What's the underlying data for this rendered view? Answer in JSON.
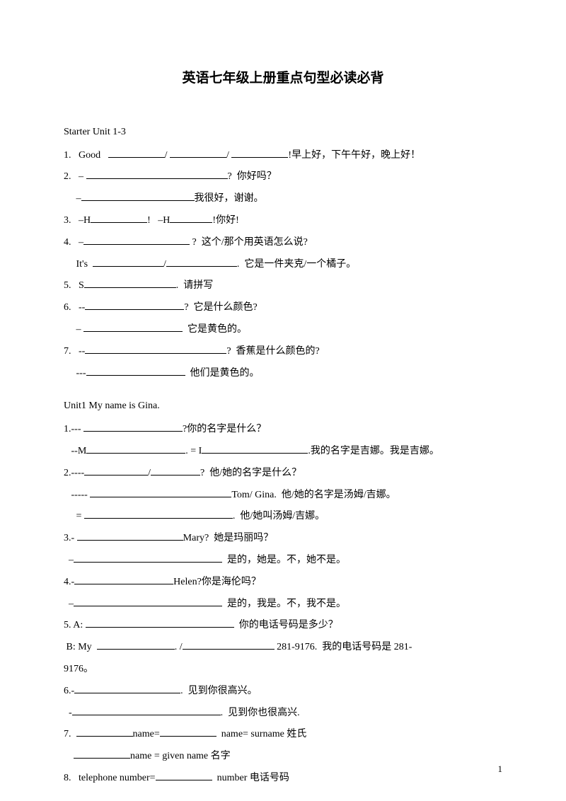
{
  "title": "英语七年级上册重点句型必读必背",
  "page_number": "1",
  "section1": {
    "header": "Starter Unit 1-3",
    "q1_pre": "1.   Good   ",
    "q1_post": "!早上好，下午午好，晚上好！",
    "q2a": "2.   – ",
    "q2a_post": "?  你好吗？",
    "q2b_pre": "     –",
    "q2b_post": "我很好，谢谢。",
    "q3_pre": "3.   –H",
    "q3_mid": "!   –H",
    "q3_post": "!你好!",
    "q4a_pre": "4.   –",
    "q4a_post": " ?  这个/那个用英语怎么说?",
    "q4b_pre": "     It's  ",
    "q4b_post": ".  它是一件夹克/一个橘子。",
    "q5_pre": "5.   S",
    "q5_post": ".  请拼写",
    "q6a_pre": "6.   --",
    "q6a_post": "?  它是什么颜色?",
    "q6b_pre": "     – ",
    "q6b_post": "  它是黄色的。",
    "q7a_pre": "7.   --",
    "q7a_post": "?  香蕉是什么颜色的?",
    "q7b_pre": "     ---",
    "q7b_post": "  他们是黄色的。"
  },
  "section2": {
    "header": "Unit1 My name is Gina.",
    "q1a_pre": "1.--- ",
    "q1a_post": "?你的名字是什么？",
    "q1b_pre": "   --M",
    "q1b_mid": ". = I",
    "q1b_post": ".我的名字是吉娜。我是吉娜。",
    "q2a_pre": "2.----",
    "q2a_post": "?  他/她的名字是什么？",
    "q2b_pre": "   ----- ",
    "q2b_post": "Tom/ Gina.  他/她的名字是汤姆/吉娜。",
    "q2c_pre": "     = ",
    "q2c_post": ".  他/她叫汤姆/吉娜。",
    "q3a_pre": "3.- ",
    "q3a_post": "Mary?  她是玛丽吗？",
    "q3b_pre": "  –",
    "q3b_post": "  是的，她是。不，她不是。",
    "q4a_pre": "4.-",
    "q4a_post": "Helen?你是海伦吗？",
    "q4b_pre": "  –",
    "q4b_post": "  是的，我是。不，我不是。",
    "q5a_pre": "5. A: ",
    "q5a_post": "  你的电话号码是多少？",
    "q5b_pre": " B: My  ",
    "q5b_mid": ". /",
    "q5b_post": " 281-9176.  我的电话号码是 281-",
    "q5c": "9176。",
    "q6a_pre": "6.-",
    "q6a_post": ".  见到你很高兴。",
    "q6b_pre": "  -",
    "q6b_post": ".  见到你也很高兴.",
    "q7a_pre": "7.  ",
    "q7a_mid": "name=",
    "q7a_post": "  name= surname 姓氏",
    "q7b_pre": "    ",
    "q7b_post": "name = given name 名字",
    "q8_pre": "8.   telephone number=",
    "q8_post": "  number 电话号码"
  }
}
